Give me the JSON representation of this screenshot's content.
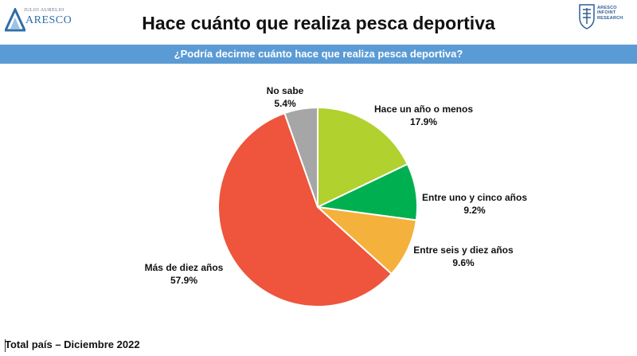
{
  "header": {
    "logo_left_small": "JULIO AURELIO",
    "logo_left_big": "ARESCO",
    "logo_right_lines": [
      "ARESCO",
      "INFOINT",
      "RESEARCH"
    ],
    "title": "Hace cuánto que realiza pesca deportiva"
  },
  "banner": {
    "question": "¿Podría decirme cuánto hace que realiza pesca deportiva?"
  },
  "footer": {
    "note": "Total país – Diciembre 2022"
  },
  "colors": {
    "banner": "#5b9bd5",
    "logo_blue": "#2f6ea8"
  },
  "chart_data": {
    "type": "pie",
    "start": "12 o'clock, clockwise",
    "slices": [
      {
        "label": "Hace un año o menos",
        "value": 17.9,
        "value_label": "17.9%",
        "color": "#b0d12e"
      },
      {
        "label": "Entre uno y cinco años",
        "value": 9.2,
        "value_label": "9.2%",
        "color": "#00b050"
      },
      {
        "label": "Entre seis y diez años",
        "value": 9.6,
        "value_label": "9.6%",
        "color": "#f4b13c"
      },
      {
        "label": "Más de diez años",
        "value": 57.9,
        "value_label": "57.9%",
        "color": "#ee553c"
      },
      {
        "label": "No sabe",
        "value": 5.4,
        "value_label": "5.4%",
        "color": "#a6a6a6"
      }
    ]
  }
}
